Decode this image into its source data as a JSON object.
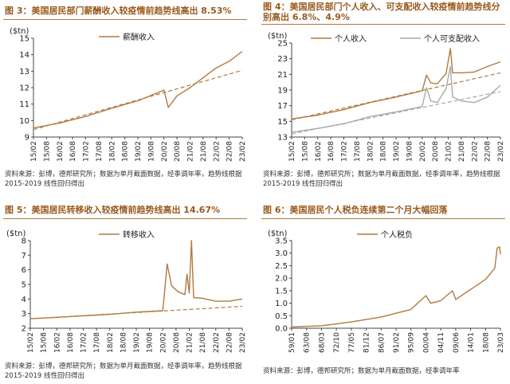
{
  "colors": {
    "title": "#9a5a1e",
    "main_series": "#b07a40",
    "second_series": "#a9a9a9",
    "trend": "#b07a40"
  },
  "panels": [
    {
      "title": "图 3：美国居民部门薪酬收入较疫情前趋势线高出 8.53%",
      "source": "资料来源：彭博，德邦研究所；数据为单月截面数据，经季调年率，趋势线根据 2015-2019 线性回归得出"
    },
    {
      "title": "图 4：美国居民部门个人收入、可支配收入较疫情前趋势线分别高出 6.8%、4.9%",
      "source": "资料来源：彭博，德邦研究所；数据为单月截面数据，经季调年率，趋势线根据 2015-2019 线性回归得出"
    },
    {
      "title": "图 5：美国居民转移收入较疫情前趋势线高出 14.67%",
      "source": "资料来源：彭博，德邦研究所；数据为单月截面数据，经季调年率，趋势线根据 2015-2019 线性回归得出"
    },
    {
      "title": "图 6：美国居民个人税负连续第二个月大幅回落",
      "source": "资料来源：彭博，德邦研究所；数据为单月截面数据，经季调年率"
    }
  ],
  "chart_data": [
    {
      "type": "line",
      "ylabel": "($tn)",
      "ylim": [
        9,
        15
      ],
      "yticks": [
        9,
        10,
        11,
        12,
        13,
        14,
        15
      ],
      "x_tick_labels": [
        "15/02",
        "15/08",
        "16/02",
        "16/08",
        "17/02",
        "17/08",
        "18/02",
        "18/08",
        "19/02",
        "19/08",
        "20/02",
        "20/08",
        "21/02",
        "21/08",
        "22/02",
        "22/08",
        "23/02"
      ],
      "legend_position": "top-left",
      "series": [
        {
          "name": "薪酬收入",
          "x": [
            "15/02",
            "16/02",
            "17/02",
            "18/02",
            "19/02",
            "20/02",
            "20/04",
            "20/08",
            "21/02",
            "21/08",
            "22/02",
            "22/08",
            "23/02"
          ],
          "values": [
            9.55,
            9.85,
            10.25,
            10.75,
            11.2,
            11.85,
            10.8,
            11.5,
            12.0,
            12.6,
            13.2,
            13.6,
            14.2
          ]
        },
        {
          "name": "",
          "style": "dashed",
          "x": [
            "15/02",
            "23/02"
          ],
          "values": [
            9.45,
            13.05
          ]
        }
      ]
    },
    {
      "type": "line",
      "ylabel": "($tn)",
      "ylim": [
        13,
        25
      ],
      "yticks": [
        13,
        15,
        17,
        19,
        21,
        23,
        25
      ],
      "x_tick_labels": [
        "15/02",
        "15/08",
        "16/02",
        "16/08",
        "17/02",
        "17/08",
        "18/02",
        "18/08",
        "19/02",
        "19/08",
        "20/02",
        "20/08",
        "21/02",
        "21/08",
        "22/02",
        "22/08",
        "23/02"
      ],
      "legend_position": "top",
      "series": [
        {
          "name": "个人收入",
          "x": [
            "15/02",
            "16/02",
            "17/02",
            "18/02",
            "19/02",
            "20/02",
            "20/04",
            "20/06",
            "20/09",
            "21/01",
            "21/03",
            "21/04",
            "21/08",
            "22/02",
            "22/08",
            "23/02"
          ],
          "values": [
            15.3,
            15.8,
            16.5,
            17.4,
            18.1,
            18.9,
            20.9,
            19.9,
            19.8,
            21.1,
            24.3,
            21.2,
            21.2,
            21.3,
            22.0,
            22.6
          ]
        },
        {
          "name": "",
          "style": "dashed",
          "x": [
            "15/02",
            "23/02"
          ],
          "values": [
            15.2,
            21.2
          ]
        },
        {
          "name": "个人可支配收入",
          "x": [
            "15/02",
            "16/02",
            "17/02",
            "18/02",
            "19/02",
            "20/02",
            "20/04",
            "20/06",
            "20/09",
            "21/01",
            "21/03",
            "21/04",
            "21/08",
            "22/02",
            "22/08",
            "23/02"
          ],
          "values": [
            13.6,
            14.1,
            14.7,
            15.6,
            16.2,
            16.9,
            19.3,
            17.6,
            17.4,
            19.2,
            22.0,
            18.1,
            17.6,
            17.4,
            18.1,
            19.6
          ]
        },
        {
          "name": "",
          "style": "dashed",
          "x": [
            "15/02",
            "23/02"
          ],
          "values": [
            13.4,
            18.8
          ]
        }
      ]
    },
    {
      "type": "line",
      "ylabel": "($tn)",
      "ylim": [
        2,
        8
      ],
      "yticks": [
        2,
        3,
        4,
        5,
        6,
        7,
        8
      ],
      "x_tick_labels": [
        "15/02",
        "15/08",
        "16/02",
        "16/08",
        "17/02",
        "17/08",
        "18/02",
        "18/08",
        "19/02",
        "19/08",
        "20/02",
        "20/08",
        "21/02",
        "21/08",
        "22/02",
        "22/08",
        "23/02"
      ],
      "legend_position": "top",
      "series": [
        {
          "name": "转移收入",
          "x": [
            "15/02",
            "16/02",
            "17/02",
            "18/02",
            "19/02",
            "20/02",
            "20/04",
            "20/06",
            "20/09",
            "20/12",
            "21/01",
            "21/02",
            "21/03",
            "21/04",
            "21/08",
            "22/02",
            "22/08",
            "23/02"
          ],
          "values": [
            2.65,
            2.75,
            2.85,
            2.95,
            3.1,
            3.2,
            6.4,
            4.9,
            4.5,
            4.3,
            5.7,
            4.4,
            8.0,
            4.1,
            4.05,
            3.85,
            3.85,
            4.0
          ]
        },
        {
          "name": "",
          "style": "dashed",
          "x": [
            "15/02",
            "23/02"
          ],
          "values": [
            2.65,
            3.5
          ]
        }
      ]
    },
    {
      "type": "line",
      "ylabel": "($tn)",
      "ylim": [
        0,
        3.5
      ],
      "yticks": [
        0.0,
        0.5,
        1.0,
        1.5,
        2.0,
        2.5,
        3.0,
        3.5
      ],
      "x_tick_labels": [
        "59/01",
        "63/08",
        "68/03",
        "72/10",
        "77/05",
        "81/12",
        "86/07",
        "91/02",
        "95/09",
        "00/04",
        "04/11",
        "09/06",
        "14/01",
        "18/08",
        "23/03"
      ],
      "legend_position": "top",
      "series": [
        {
          "name": "个人税负",
          "x": [
            "59/01",
            "68/03",
            "77/05",
            "86/07",
            "95/09",
            "00/04",
            "01/10",
            "04/11",
            "08/06",
            "09/06",
            "14/01",
            "18/08",
            "21/06",
            "22/03",
            "22/12",
            "23/03"
          ],
          "values": [
            0.05,
            0.1,
            0.25,
            0.45,
            0.75,
            1.3,
            1.0,
            1.1,
            1.5,
            1.15,
            1.55,
            1.95,
            2.4,
            3.2,
            3.25,
            2.95
          ]
        }
      ]
    }
  ]
}
